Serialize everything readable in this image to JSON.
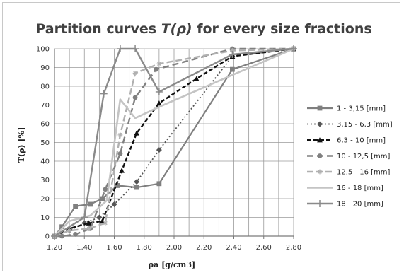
{
  "chart_data": {
    "type": "line",
    "title": "Partition curves T(ρ) for every size fractions",
    "title_parts": {
      "prefix": "Partition curves ",
      "symbol": "T(ρ)",
      "suffix": " for every size fractions"
    },
    "xlabel": "ρa [g/cm3]",
    "ylabel": "T(ρ) [%]",
    "xlim": [
      1.2,
      2.8
    ],
    "ylim": [
      0,
      100
    ],
    "xticks": [
      "1,20",
      "1,40",
      "1,60",
      "1,80",
      "2,00",
      "2,20",
      "2,40",
      "2,60",
      "2,80"
    ],
    "yticks": [
      "0",
      "10",
      "20",
      "30",
      "40",
      "50",
      "60",
      "70",
      "80",
      "90",
      "100"
    ],
    "grid": true,
    "legend_position": "right",
    "series": [
      {
        "name": "1 - 3,15 [mm]",
        "color": "#7f7f7f",
        "dash": "",
        "width": 2.2,
        "marker": "square",
        "x": [
          1.2,
          1.25,
          1.34,
          1.44,
          1.52,
          1.62,
          1.75,
          1.9,
          2.39,
          2.8
        ],
        "y": [
          0,
          5,
          16,
          17,
          20,
          27,
          26,
          28,
          89,
          100
        ]
      },
      {
        "name": "3,15 - 6,3 [mm]",
        "color": "#555555",
        "dash": "2,3",
        "width": 1.8,
        "marker": "diamond",
        "x": [
          1.2,
          1.3,
          1.4,
          1.5,
          1.6,
          1.75,
          1.9,
          2.39,
          2.8
        ],
        "y": [
          0,
          3,
          7,
          10,
          17,
          29,
          46,
          96,
          100
        ]
      },
      {
        "name": "6,3 - 10 [mm]",
        "color": "#111111",
        "dash": "6,3",
        "width": 2.4,
        "marker": "triangle",
        "x": [
          1.2,
          1.3,
          1.43,
          1.52,
          1.65,
          1.75,
          1.9,
          2.15,
          2.39,
          2.8
        ],
        "y": [
          0,
          4,
          7,
          8,
          35,
          55,
          71,
          84,
          96,
          100
        ]
      },
      {
        "name": "10 - 12,5 [mm]",
        "color": "#808080",
        "dash": "9,5",
        "width": 2.4,
        "marker": "circle",
        "x": [
          1.2,
          1.25,
          1.34,
          1.44,
          1.54,
          1.64,
          1.74,
          1.88,
          2.39,
          2.8
        ],
        "y": [
          0,
          0,
          1,
          4,
          25,
          44,
          74,
          89,
          100,
          100
        ]
      },
      {
        "name": "12,5 - 16 [mm]",
        "color": "#b0b0b0",
        "dash": "9,4",
        "width": 2.4,
        "marker": "star",
        "x": [
          1.2,
          1.3,
          1.43,
          1.54,
          1.64,
          1.74,
          1.9,
          2.39,
          2.8
        ],
        "y": [
          0,
          3,
          4,
          7,
          54,
          87,
          92,
          99,
          100
        ]
      },
      {
        "name": "16 - 18 [mm]",
        "color": "#c4c4c4",
        "dash": "",
        "width": 2.6,
        "marker": "none",
        "x": [
          1.2,
          1.3,
          1.44,
          1.55,
          1.64,
          1.74,
          1.9,
          2.39,
          2.8
        ],
        "y": [
          0,
          8,
          11,
          19,
          73,
          63,
          69,
          86,
          100
        ]
      },
      {
        "name": "18 - 20 [mm]",
        "color": "#8a8a8a",
        "dash": "",
        "width": 2.4,
        "marker": "plus",
        "x": [
          1.2,
          1.4,
          1.53,
          1.64,
          1.74,
          1.9,
          2.39,
          2.8
        ],
        "y": [
          0,
          10,
          76,
          100,
          100,
          77,
          97,
          100
        ]
      }
    ]
  }
}
